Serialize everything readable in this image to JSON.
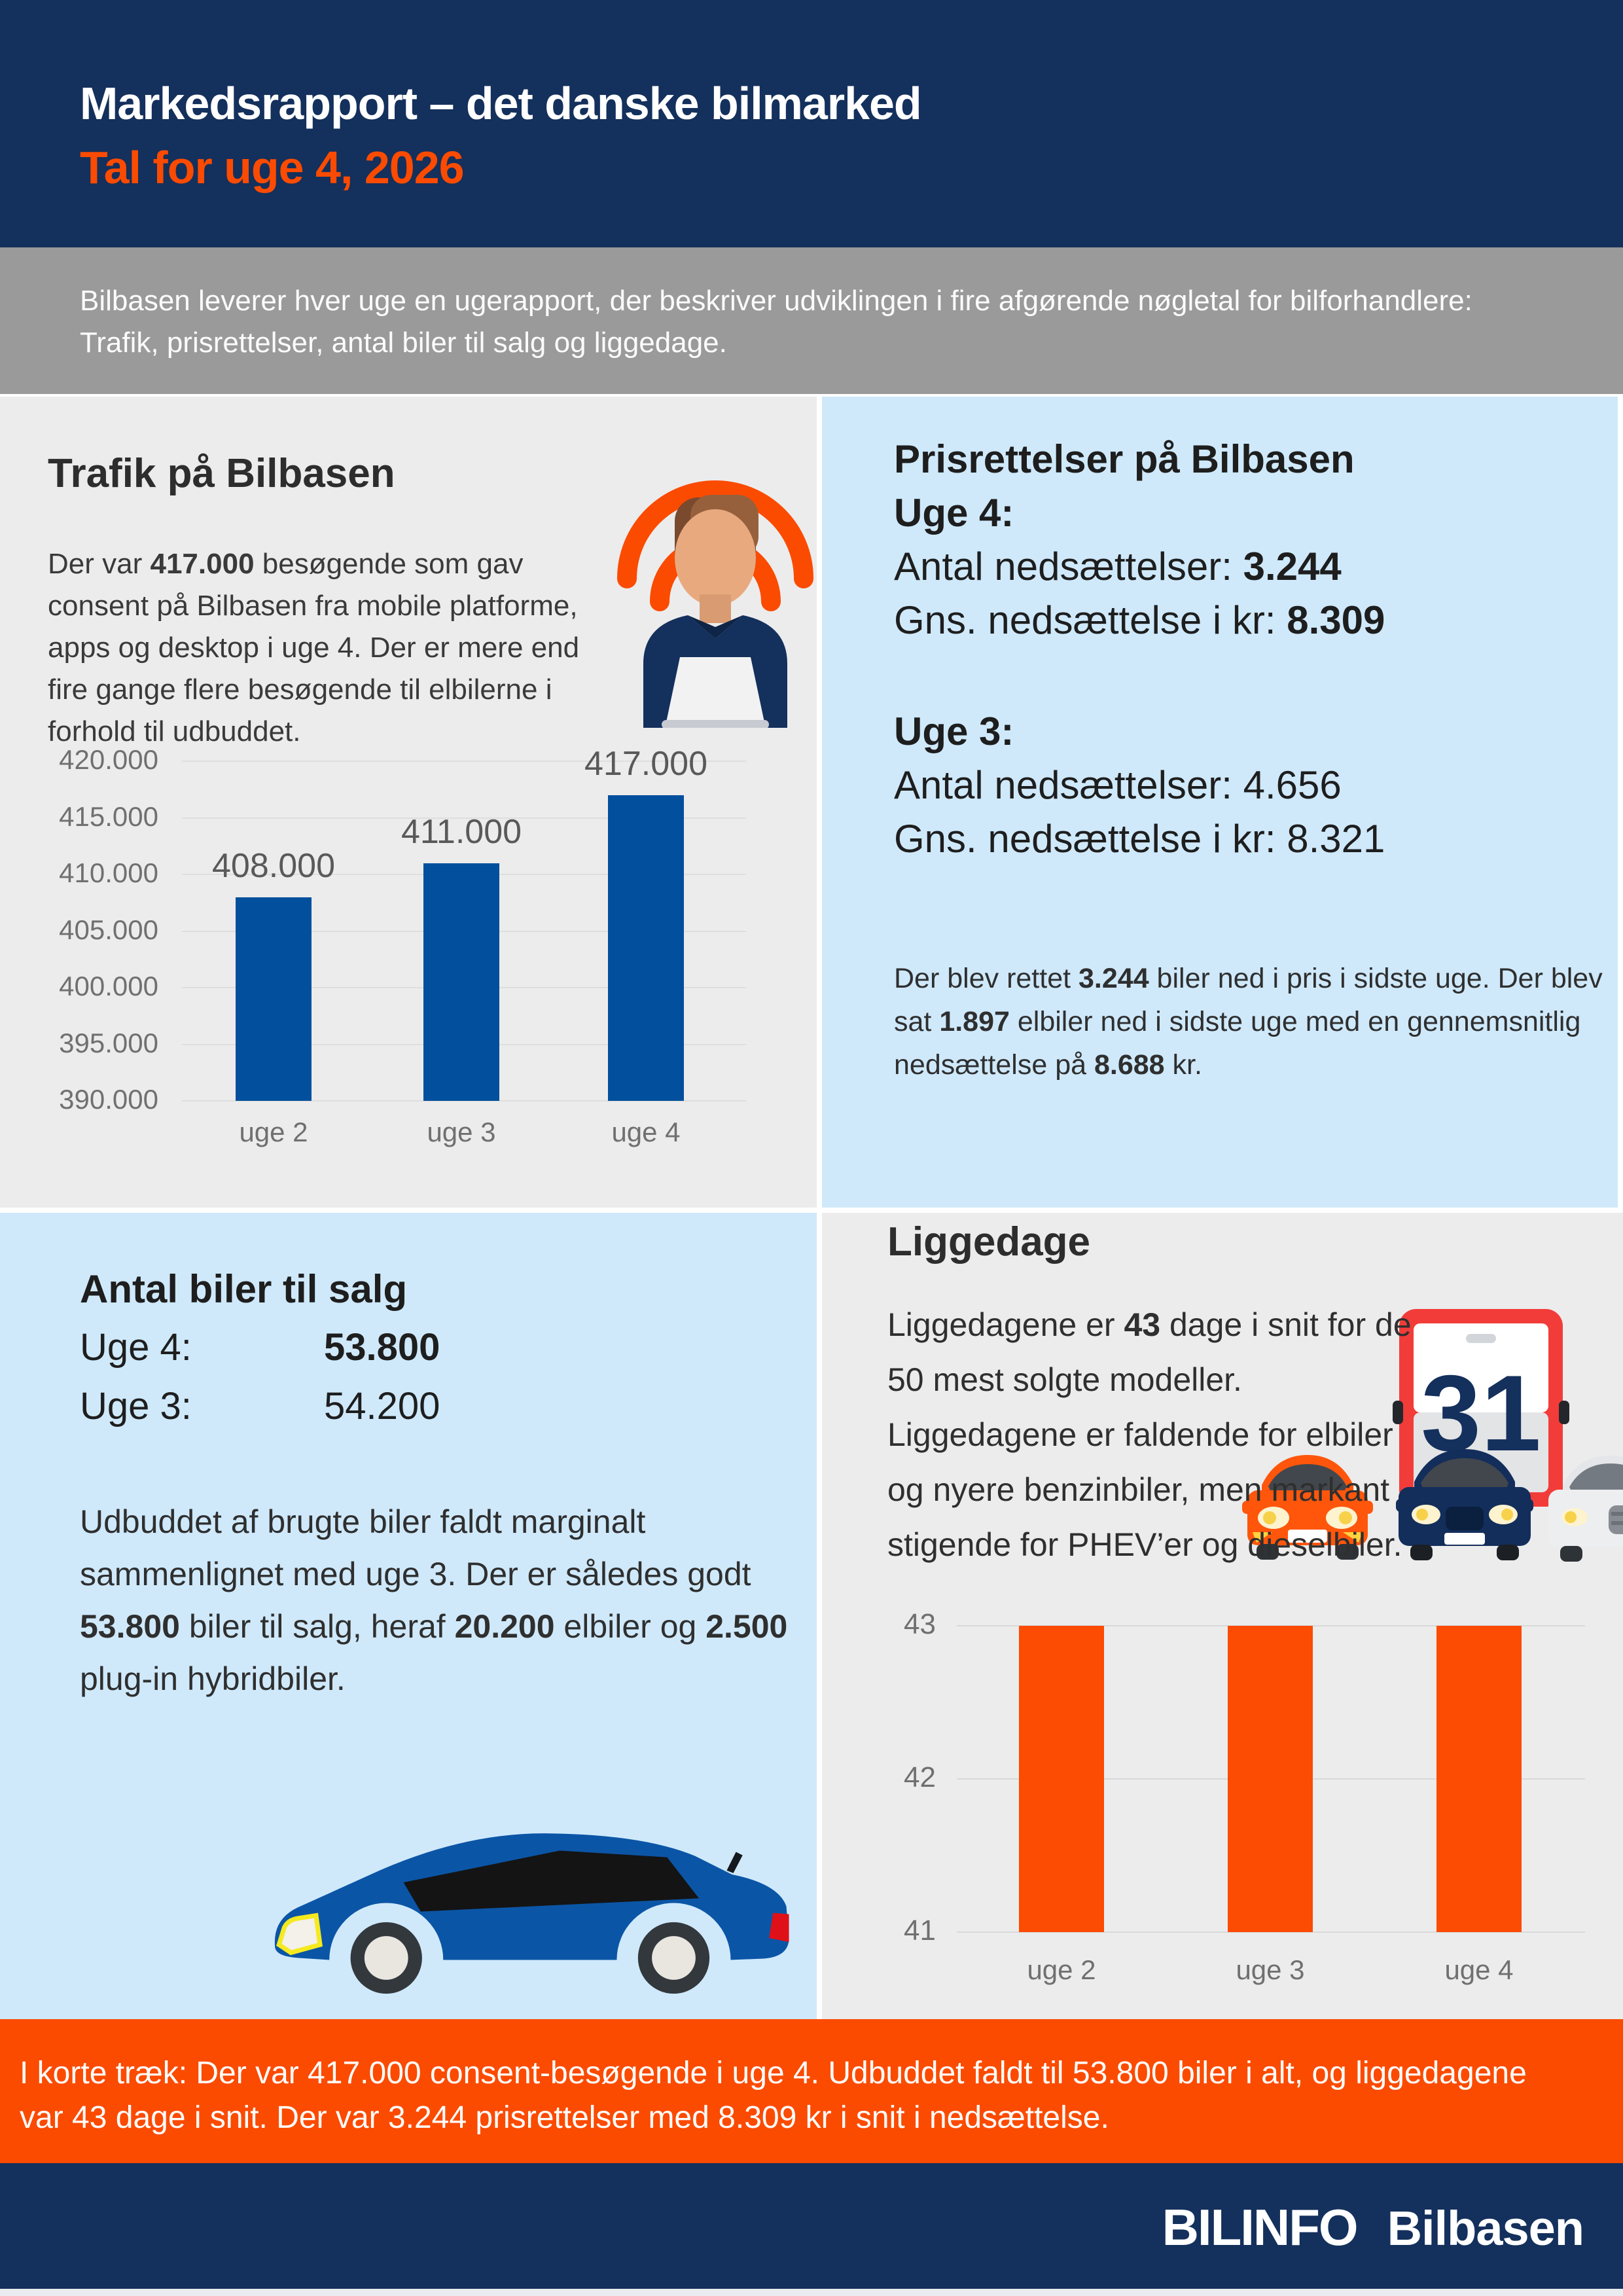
{
  "header": {
    "title": "Markedsrapport – det danske bilmarked",
    "subtitle": "Tal for uge 4, 2026"
  },
  "intro": {
    "text": "Bilbasen leverer hver uge en ugerapport, der beskriver udviklingen i fire afgørende nøgletal for bilforhandlere: Trafik, prisrettelser, antal biler til salg og liggedage."
  },
  "traffic": {
    "heading": "Trafik på Bilbasen",
    "body_segments": [
      {
        "t": "Der var "
      },
      {
        "t": "417.000",
        "b": 1
      },
      {
        "t": " besøgende som gav consent på Bilbasen fra mobile platforme, apps og desktop i uge 4. Der er mere end fire gange flere besøgende til elbilerne i forhold til udbuddet."
      }
    ],
    "icon": "person-laptop-wifi-icon"
  },
  "price": {
    "heading": "Prisrettelser på Bilbasen",
    "week4_label": "Uge 4:",
    "week4_line1_label": "Antal nedsættelser: ",
    "week4_line1_value": "3.244",
    "week4_line2_label": "Gns. nedsættelse i kr: ",
    "week4_line2_value": "8.309",
    "week3_label": "Uge 3:",
    "week3_line1": "Antal nedsættelser: 4.656",
    "week3_line2": "Gns. nedsættelse i kr: 8.321",
    "note_segments": [
      {
        "t": "Der blev rettet "
      },
      {
        "t": "3.244",
        "b": 1
      },
      {
        "t": " biler ned i pris i sidste uge. Der blev sat "
      },
      {
        "t": "1.897",
        "b": 1
      },
      {
        "t": " elbiler ned i sidste uge med en gennemsnitlig nedsættelse på "
      },
      {
        "t": "8.688",
        "b": 1
      },
      {
        "t": " kr."
      }
    ]
  },
  "stock": {
    "heading": "Antal biler til salg",
    "week4_label": "Uge 4:",
    "week4_value": "53.800",
    "week3_label": "Uge 3:",
    "week3_value": "54.200",
    "body_segments": [
      {
        "t": "Udbuddet af brugte biler faldt marginalt sammenlignet med uge 3. Der er således godt "
      },
      {
        "t": "53.800",
        "b": 1
      },
      {
        "t": " biler til salg, heraf "
      },
      {
        "t": "20.200",
        "b": 1
      },
      {
        "t": " elbiler og "
      },
      {
        "t": "2.500",
        "b": 1
      },
      {
        "t": " plug-in hybridbiler."
      }
    ],
    "icon": "car-side-icon"
  },
  "days": {
    "heading": "Liggedage",
    "body_segments": [
      {
        "t": "Liggedagene er "
      },
      {
        "t": "43",
        "b": 1
      },
      {
        "t": " dage i snit for de 50 mest solgte modeller. Liggedagene er faldende for elbiler og nyere benzinbiler, men markant stigende for PHEV’er og dieselbiler."
      }
    ],
    "calendar_number": "31",
    "icon": "calendar-31-cars-icon"
  },
  "summary": {
    "text": "I korte træk: Der var 417.000 consent-besøgende i uge 4. Udbuddet faldt til 53.800 biler i alt, og liggedagene var 43 dage i snit. Der var 3.244 prisrettelser med 8.309 kr i snit i nedsættelse."
  },
  "footer": {
    "logo_primary": "BILINFO",
    "logo_secondary": "Bilbasen"
  },
  "colors": {
    "navy": "#14305C",
    "orange": "#FB4B01",
    "band_gray": "#9A9A9A",
    "panel_gray": "#ECECEC",
    "panel_blue": "#CFE9FB",
    "bar_blue": "#02509D",
    "bar_orange": "#FC4B02"
  },
  "chart_data": [
    {
      "id": "traffic_chart",
      "type": "bar",
      "title": "",
      "xlabel": "",
      "ylabel": "",
      "categories": [
        "uge 2",
        "uge 3",
        "uge 4"
      ],
      "values": [
        408000,
        411000,
        417000
      ],
      "data_labels": [
        "408.000",
        "411.000",
        "417.000"
      ],
      "ticks": [
        {
          "label": "420.000",
          "value": 420000
        },
        {
          "label": "415.000",
          "value": 415000
        },
        {
          "label": "410.000",
          "value": 410000
        },
        {
          "label": "405.000",
          "value": 405000
        },
        {
          "label": "400.000",
          "value": 400000
        },
        {
          "label": "395.000",
          "value": 395000
        },
        {
          "label": "390.000",
          "value": 390000
        }
      ],
      "ylim": [
        390000,
        420000
      ],
      "grid": true,
      "legend": "none",
      "bar_color": "#02509D"
    },
    {
      "id": "liggedage_chart",
      "type": "bar",
      "title": "",
      "xlabel": "",
      "ylabel": "",
      "categories": [
        "uge 2",
        "uge 3",
        "uge 4"
      ],
      "values": [
        43,
        43,
        43
      ],
      "data_labels": null,
      "ticks": [
        {
          "label": "43",
          "value": 43
        },
        {
          "label": "42",
          "value": 42
        },
        {
          "label": "41",
          "value": 41
        }
      ],
      "ylim": [
        41,
        43
      ],
      "grid": true,
      "legend": "none",
      "bar_color": "#FC4B02"
    }
  ]
}
